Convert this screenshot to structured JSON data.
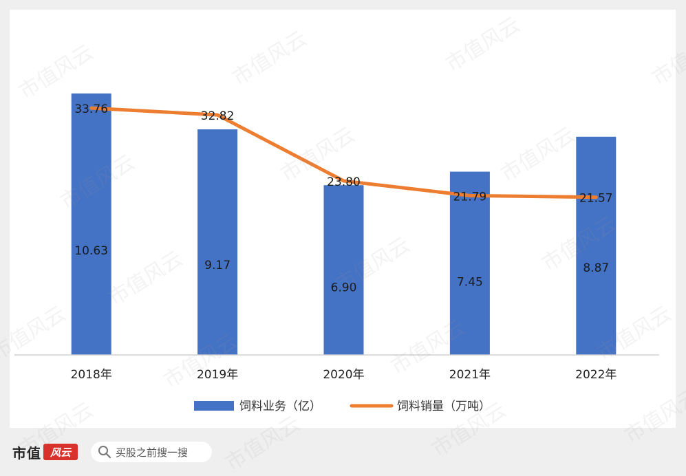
{
  "chart_data": {
    "type": "bar+line",
    "title": "",
    "xlabel": "",
    "ylabel": "",
    "categories": [
      "2018年",
      "2019年",
      "2020年",
      "2021年",
      "2022年"
    ],
    "series": [
      {
        "name": "饲料业务（亿）",
        "type": "bar",
        "values": [
          10.63,
          9.17,
          6.9,
          7.45,
          8.87
        ],
        "labels": [
          "10.63",
          "9.17",
          "6.90",
          "7.45",
          "8.87"
        ],
        "color": "#4472c4"
      },
      {
        "name": "饲料销量（万吨）",
        "type": "line",
        "values": [
          33.76,
          32.82,
          23.8,
          21.79,
          21.57
        ],
        "labels": [
          "33.76",
          "32.82",
          "23.80",
          "21.79",
          "21.57"
        ],
        "color": "#ed7d31"
      }
    ],
    "bar_axis_range": [
      0,
      11.8
    ],
    "line_axis_range": [
      0,
      39.7
    ],
    "grid": false,
    "legend_position": "bottom"
  },
  "footer": {
    "brand": "市值",
    "brand_mark": "风云",
    "search_placeholder": "买股之前搜一搜"
  },
  "watermark": "市值风云",
  "colors": {
    "background": "#efefef",
    "card": "#ffffff",
    "brand_red": "#d9312b"
  }
}
